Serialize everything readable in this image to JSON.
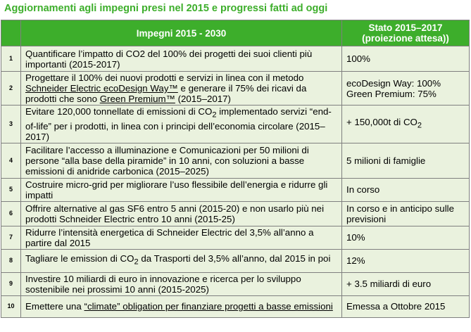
{
  "title": "Aggiornamenti agli impegni presi nel 2015 e progressi fatti ad oggi",
  "columns": {
    "number": "",
    "impegni": "Impegni 2015 - 2030",
    "stato_line1": "Stato  2015–2017",
    "stato_line2": "(proiezione attesa))"
  },
  "rows": [
    {
      "num": "1",
      "impegno": [
        {
          "t": "Quantificare l’impatto di CO2 del 100% dei progetti dei suoi clienti più importanti (2015-2017)"
        }
      ],
      "stato": [
        "100%"
      ]
    },
    {
      "num": "2",
      "impegno": [
        {
          "t": "Progettare il 100% dei nuovi prodotti e servizi in linea con il metodo "
        },
        {
          "t": "Schneider Electric ecoDesign Way™",
          "u": true
        },
        {
          "t": " e generare il 75% dei ricavi da prodotti che sono "
        },
        {
          "t": "Green Premium™",
          "u": true
        },
        {
          "t": " (2015–2017)"
        }
      ],
      "stato": [
        "ecoDesign Way: 100%",
        "Green Premium: 75%"
      ]
    },
    {
      "num": "3",
      "impegno": [
        {
          "t": "Evitare 120,000 tonnellate di emissioni di CO"
        },
        {
          "t": "2",
          "sub": true
        },
        {
          "t": "  implementado servizi “end-of-life” per i prodotti, in linea con i principi dell’economia circolare  (2015–2017)"
        }
      ],
      "stato_rich": [
        {
          "t": "+ 150,000t di CO"
        },
        {
          "t": "2",
          "sub": true
        }
      ]
    },
    {
      "num": "4",
      "impegno": [
        {
          "t": "Facilitare l’accesso a illuminazione e Comunicazioni per 50 milioni di persone “alla base della piramide” in 10 anni, con soluzioni a basse emissioni di anidride carbonica  (2015–2025)"
        }
      ],
      "stato": [
        "5 milioni di famiglie"
      ]
    },
    {
      "num": "5",
      "impegno": [
        {
          "t": "Costruire micro-grid per migliorare l’uso flessibile dell’energia e ridurre gli impatti"
        }
      ],
      "stato": [
        "In corso"
      ]
    },
    {
      "num": "6",
      "impegno": [
        {
          "t": "Offrire alternative al gas SF6 entro 5 anni (2015-20) e non usarlo più nei prodotti Schneider Electric entro 10 anni (2015-25)"
        }
      ],
      "stato": [
        "In corso e in anticipo sulle previsioni"
      ]
    },
    {
      "num": "7",
      "impegno": [
        {
          "t": "Ridurre l’intensità energetica di Schneider Electric del 3,5% all’anno a partire dal 2015"
        }
      ],
      "stato": [
        "10%"
      ]
    },
    {
      "num": "8",
      "impegno": [
        {
          "t": "Tagliare le emission di CO"
        },
        {
          "t": "2",
          "sub": true
        },
        {
          "t": " da Trasporti del 3,5% all’anno, dal 2015 in poi"
        }
      ],
      "stato": [
        "12%"
      ]
    },
    {
      "num": "9",
      "impegno": [
        {
          "t": "Investire 10 miliardi di euro in innovazione e ricerca per lo sviluppo sostenibile nei prossimi 10 anni (2015-2025)"
        }
      ],
      "stato": [
        "+ 3.5 miliardi di euro"
      ]
    },
    {
      "num": "10",
      "impegno": [
        {
          "t": "Emettere una  "
        },
        {
          "t": "“climate” obligation per finanziare progetti a basse emissioni",
          "u": true
        }
      ],
      "stato": [
        "Emessa a Ottobre 2015"
      ]
    }
  ],
  "colors": {
    "title": "#3dae2b",
    "header_bg": "#3dae2b",
    "header_text": "#ffffff",
    "row_bg": "#eaf2de",
    "border": "#7f7f7f"
  }
}
